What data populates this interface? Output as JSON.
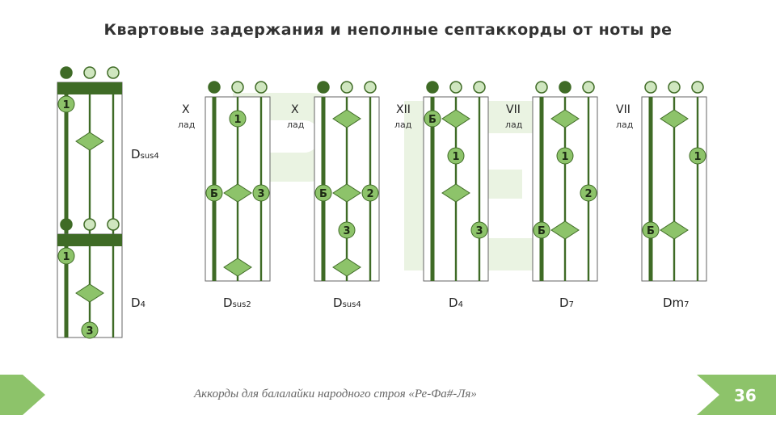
{
  "title": "Квартовые задержания и неполные септаккорды от ноты ре",
  "footer": "Аккорды для балалайки народного строя «Ре-Фа#-Ля»",
  "page_number": "36",
  "colors": {
    "dark": "#3f6b26",
    "mid": "#76b04f",
    "light": "#cfe6bf",
    "accent": "#8dc36a",
    "bg_letter": "#eaf3e2"
  },
  "chords": [
    {
      "id": "dsus4-top",
      "open": [
        "dark",
        "light",
        "light"
      ],
      "nut": true,
      "fret_label": "",
      "lad": "",
      "name_main": "D",
      "name_sub": "sus4",
      "markers": [
        {
          "kind": "circle",
          "label": "1",
          "string": 0,
          "row": 1
        },
        {
          "kind": "diamond",
          "label": "",
          "string": 1,
          "row": 2
        }
      ]
    },
    {
      "id": "dsus2",
      "open": [
        "dark",
        "light",
        "light"
      ],
      "nut": false,
      "fret_label": "X",
      "lad": "лад",
      "name_main": "D",
      "name_sub": "sus2",
      "markers": [
        {
          "kind": "circle",
          "label": "1",
          "string": 1,
          "row": 1
        },
        {
          "kind": "circle",
          "label": "Б",
          "string": 0,
          "row": 3
        },
        {
          "kind": "diamond",
          "label": "",
          "string": 1,
          "row": 3
        },
        {
          "kind": "circle",
          "label": "3",
          "string": 2,
          "row": 3
        },
        {
          "kind": "diamond",
          "label": "",
          "string": 1,
          "row": 5
        }
      ]
    },
    {
      "id": "dsus4-x",
      "open": [
        "dark",
        "light",
        "light"
      ],
      "nut": false,
      "fret_label": "X",
      "lad": "лад",
      "name_main": "D",
      "name_sub": "sus4",
      "markers": [
        {
          "kind": "diamond",
          "label": "",
          "string": 1,
          "row": 1
        },
        {
          "kind": "circle",
          "label": "Б",
          "string": 0,
          "row": 3
        },
        {
          "kind": "diamond",
          "label": "",
          "string": 1,
          "row": 3
        },
        {
          "kind": "circle",
          "label": "2",
          "string": 2,
          "row": 3
        },
        {
          "kind": "circle",
          "label": "3",
          "string": 1,
          "row": 4
        },
        {
          "kind": "diamond",
          "label": "",
          "string": 1,
          "row": 5
        }
      ]
    },
    {
      "id": "d4-xii",
      "open": [
        "dark",
        "light",
        "light"
      ],
      "nut": false,
      "fret_label": "XII",
      "lad": "лад",
      "name_main": "D",
      "name_sub": "4",
      "markers": [
        {
          "kind": "circle",
          "label": "Б",
          "string": 0,
          "row": 1
        },
        {
          "kind": "diamond",
          "label": "",
          "string": 1,
          "row": 1
        },
        {
          "kind": "circle",
          "label": "1",
          "string": 1,
          "row": 2
        },
        {
          "kind": "diamond",
          "label": "",
          "string": 1,
          "row": 3
        },
        {
          "kind": "circle",
          "label": "3",
          "string": 2,
          "row": 4
        }
      ]
    },
    {
      "id": "d7",
      "open": [
        "light",
        "dark",
        "light"
      ],
      "nut": false,
      "fret_label": "VII",
      "lad": "лад",
      "name_main": "D",
      "name_sub": "7",
      "markers": [
        {
          "kind": "diamond",
          "label": "",
          "string": 1,
          "row": 1
        },
        {
          "kind": "circle",
          "label": "1",
          "string": 1,
          "row": 2
        },
        {
          "kind": "circle",
          "label": "2",
          "string": 2,
          "row": 3
        },
        {
          "kind": "circle",
          "label": "Б",
          "string": 0,
          "row": 4
        },
        {
          "kind": "diamond",
          "label": "",
          "string": 1,
          "row": 4
        }
      ]
    },
    {
      "id": "dm7",
      "open": [
        "light",
        "light",
        "light"
      ],
      "nut": false,
      "fret_label": "VII",
      "lad": "лад",
      "name_main": "Dm",
      "name_sub": "7",
      "markers": [
        {
          "kind": "diamond",
          "label": "",
          "string": 1,
          "row": 1
        },
        {
          "kind": "circle",
          "label": "1",
          "string": 2,
          "row": 2
        },
        {
          "kind": "circle",
          "label": "Б",
          "string": 0,
          "row": 4
        },
        {
          "kind": "diamond",
          "label": "",
          "string": 1,
          "row": 4
        }
      ]
    },
    {
      "id": "d4-bottom",
      "open": [
        "dark",
        "light",
        "light"
      ],
      "nut": true,
      "fret_label": "",
      "lad": "",
      "name_main": "D",
      "name_sub": "4",
      "markers": [
        {
          "kind": "circle",
          "label": "1",
          "string": 0,
          "row": 1
        },
        {
          "kind": "diamond",
          "label": "",
          "string": 1,
          "row": 2
        },
        {
          "kind": "circle",
          "label": "3",
          "string": 1,
          "row": 3
        }
      ]
    }
  ]
}
